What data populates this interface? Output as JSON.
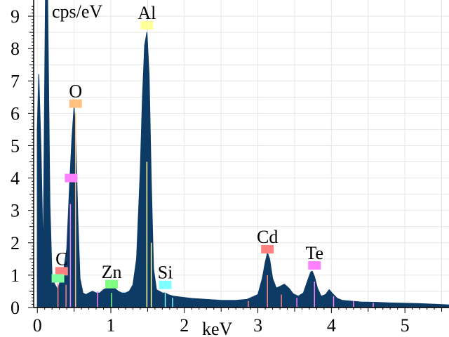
{
  "chart_data": {
    "type": "area",
    "ylabel": "cps/eV",
    "xlabel": "keV",
    "xlim": [
      -0.05,
      5.6
    ],
    "ylim": [
      0,
      9.5
    ],
    "x_ticks": [
      "0",
      "1",
      "2",
      "3",
      "4",
      "5"
    ],
    "y_ticks": [
      "0",
      "1",
      "2",
      "3",
      "4",
      "5",
      "6",
      "7",
      "8",
      "9"
    ],
    "grid": true,
    "fill_color": "#0d3b66",
    "spectrum": {
      "x": [
        0.0,
        0.02,
        0.05,
        0.08,
        0.11,
        0.14,
        0.17,
        0.2,
        0.24,
        0.28,
        0.32,
        0.36,
        0.4,
        0.44,
        0.47,
        0.5,
        0.52,
        0.55,
        0.58,
        0.62,
        0.66,
        0.7,
        0.75,
        0.8,
        0.85,
        0.9,
        0.95,
        1.0,
        1.05,
        1.1,
        1.15,
        1.2,
        1.25,
        1.3,
        1.35,
        1.4,
        1.43,
        1.46,
        1.49,
        1.52,
        1.55,
        1.58,
        1.62,
        1.66,
        1.7,
        1.74,
        1.78,
        1.85,
        1.95,
        2.1,
        2.3,
        2.5,
        2.7,
        2.85,
        3.0,
        3.06,
        3.1,
        3.13,
        3.16,
        3.2,
        3.25,
        3.3,
        3.36,
        3.42,
        3.48,
        3.55,
        3.62,
        3.68,
        3.72,
        3.74,
        3.77,
        3.81,
        3.86,
        3.92,
        3.97,
        4.02,
        4.08,
        4.15,
        4.25,
        4.4,
        4.6,
        4.8,
        5.0,
        5.2,
        5.4,
        5.6
      ],
      "y": [
        5.5,
        7.2,
        4.8,
        1.5,
        9.5,
        9.5,
        3.2,
        0.9,
        0.7,
        0.55,
        0.9,
        1.2,
        1.8,
        3.8,
        5.2,
        6.2,
        5.4,
        2.8,
        0.9,
        0.45,
        0.4,
        0.45,
        0.5,
        0.45,
        0.45,
        0.55,
        0.6,
        0.7,
        0.6,
        0.5,
        0.45,
        0.45,
        0.5,
        0.7,
        1.5,
        4.2,
        6.5,
        8.1,
        8.5,
        7.2,
        3.9,
        1.2,
        0.55,
        0.5,
        0.45,
        0.45,
        0.4,
        0.35,
        0.32,
        0.28,
        0.25,
        0.22,
        0.22,
        0.25,
        0.4,
        0.9,
        1.4,
        1.68,
        1.5,
        0.9,
        0.6,
        0.65,
        0.72,
        0.6,
        0.42,
        0.35,
        0.45,
        0.85,
        1.1,
        1.12,
        0.95,
        0.6,
        0.35,
        0.4,
        0.55,
        0.42,
        0.28,
        0.22,
        0.2,
        0.17,
        0.16,
        0.14,
        0.13,
        0.12,
        0.1,
        0.08
      ]
    },
    "element_markers": [
      {
        "label": "Al",
        "x": 1.49,
        "y": 8.72,
        "color": "#ffff99"
      },
      {
        "label": "O",
        "x": 0.52,
        "y": 6.3,
        "color": "#ffc080"
      },
      {
        "label": "",
        "x": 0.46,
        "y": 4.0,
        "color": "#ff80ff"
      },
      {
        "label": "Cd",
        "x": 3.13,
        "y": 1.8,
        "color": "#ff8080"
      },
      {
        "label": "Te",
        "x": 3.77,
        "y": 1.3,
        "color": "#ff80ff"
      },
      {
        "label": "C",
        "x": 0.33,
        "y": 1.12,
        "color": "#ff8080"
      },
      {
        "label": "",
        "x": 0.28,
        "y": 0.9,
        "color": "#80ffa0"
      },
      {
        "label": "Zn",
        "x": 1.01,
        "y": 0.72,
        "color": "#80ff80"
      },
      {
        "label": "Si",
        "x": 1.74,
        "y": 0.7,
        "color": "#80ffff"
      }
    ],
    "line_markers": [
      {
        "x": 0.28,
        "h": 0.75,
        "color": "#ff8080"
      },
      {
        "x": 0.39,
        "h": 0.7,
        "color": "#ff8080"
      },
      {
        "x": 0.45,
        "h": 3.2,
        "color": "#ff80ff"
      },
      {
        "x": 0.52,
        "h": 6.0,
        "color": "#ffc080"
      },
      {
        "x": 0.82,
        "h": 0.5,
        "color": "#ff80ff"
      },
      {
        "x": 1.01,
        "h": 0.45,
        "color": "#80ff80"
      },
      {
        "x": 1.49,
        "h": 4.5,
        "color": "#ffff99"
      },
      {
        "x": 1.55,
        "h": 2.0,
        "color": "#ffff99"
      },
      {
        "x": 1.74,
        "h": 0.45,
        "color": "#80ffff"
      },
      {
        "x": 1.84,
        "h": 0.3,
        "color": "#80ffff"
      },
      {
        "x": 2.87,
        "h": 0.2,
        "color": "#ff8080"
      },
      {
        "x": 3.13,
        "h": 1.0,
        "color": "#ff8080"
      },
      {
        "x": 3.32,
        "h": 0.4,
        "color": "#ff8080"
      },
      {
        "x": 3.53,
        "h": 0.3,
        "color": "#ff80ff"
      },
      {
        "x": 3.77,
        "h": 0.8,
        "color": "#ff80ff"
      },
      {
        "x": 4.03,
        "h": 0.35,
        "color": "#ff80ff"
      },
      {
        "x": 4.3,
        "h": 0.2,
        "color": "#ff80ff"
      },
      {
        "x": 4.57,
        "h": 0.15,
        "color": "#ff80ff"
      }
    ]
  }
}
